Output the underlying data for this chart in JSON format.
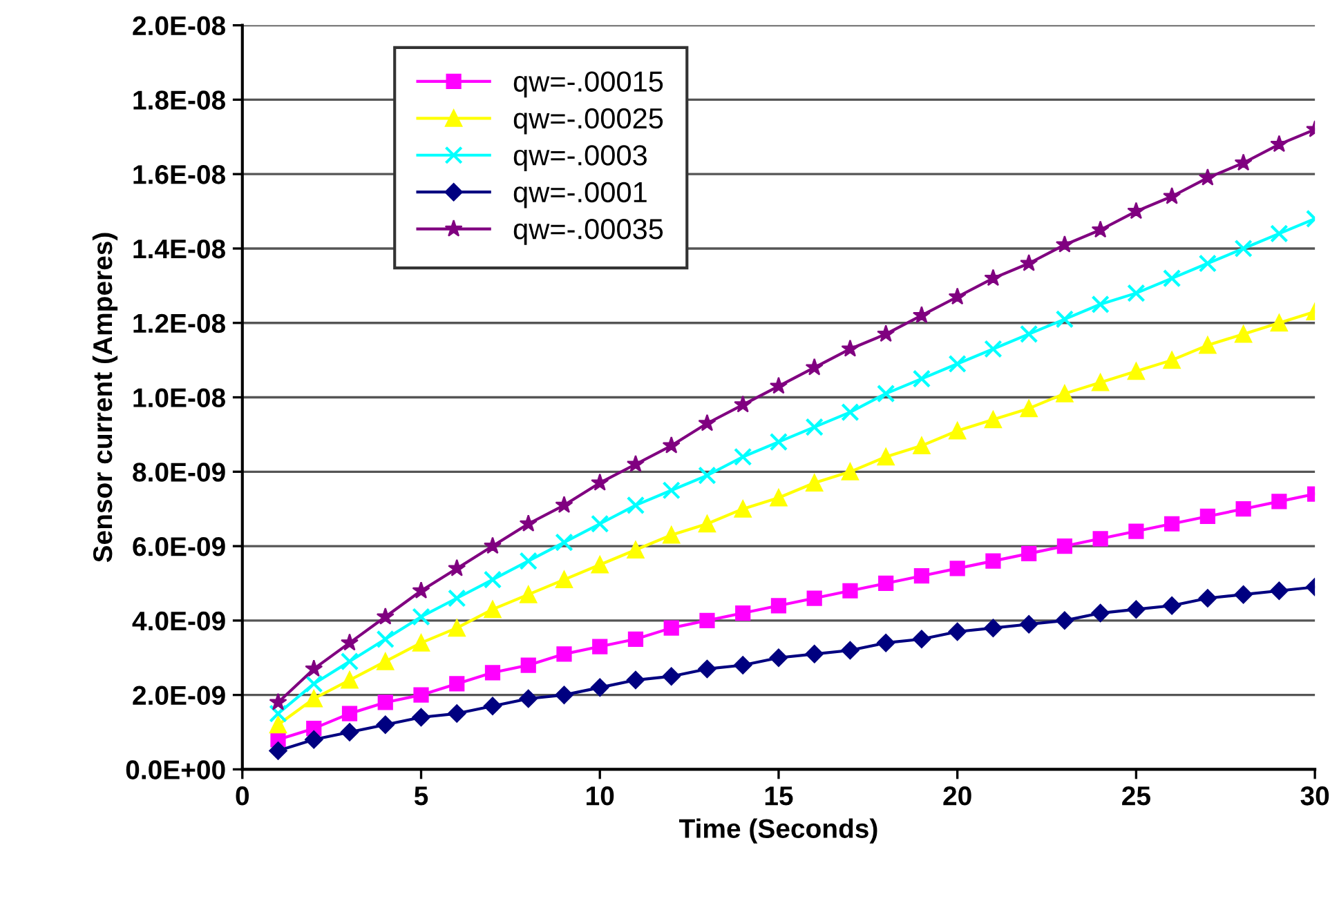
{
  "chart_data": {
    "type": "line",
    "xlabel": "Time (Seconds)",
    "ylabel": "Sensor current (Amperes)",
    "x": [
      1,
      2,
      3,
      4,
      5,
      6,
      7,
      8,
      9,
      10,
      11,
      12,
      13,
      14,
      15,
      16,
      17,
      18,
      19,
      20,
      21,
      22,
      23,
      24,
      25,
      26,
      27,
      28,
      29,
      30
    ],
    "xlim": [
      0,
      30
    ],
    "xticks": [
      0,
      5,
      10,
      15,
      20,
      25,
      30
    ],
    "ylim": [
      0,
      2e-08
    ],
    "yticks": [
      {
        "value": 0,
        "label": "0.0E+00"
      },
      {
        "value": 2e-09,
        "label": "2.0E-09"
      },
      {
        "value": 4e-09,
        "label": "4.0E-09"
      },
      {
        "value": 6e-09,
        "label": "6.0E-09"
      },
      {
        "value": 8e-09,
        "label": "8.0E-09"
      },
      {
        "value": 1e-08,
        "label": "1.0E-08"
      },
      {
        "value": 1.2e-08,
        "label": "1.2E-08"
      },
      {
        "value": 1.4e-08,
        "label": "1.4E-08"
      },
      {
        "value": 1.6e-08,
        "label": "1.6E-08"
      },
      {
        "value": 1.8e-08,
        "label": "1.8E-08"
      },
      {
        "value": 2e-08,
        "label": "2.0E-08"
      }
    ],
    "grid": "y",
    "legend": "top left",
    "series": [
      {
        "name": "qw=-.00015",
        "color": "#ff00ff",
        "marker": "square",
        "values": [
          8e-10,
          1.1e-09,
          1.5e-09,
          1.8e-09,
          2e-09,
          2.3e-09,
          2.6e-09,
          2.8e-09,
          3.1e-09,
          3.3e-09,
          3.5e-09,
          3.8e-09,
          4e-09,
          4.2e-09,
          4.4e-09,
          4.6e-09,
          4.8e-09,
          5e-09,
          5.2e-09,
          5.4e-09,
          5.6e-09,
          5.8e-09,
          6e-09,
          6.2e-09,
          6.4e-09,
          6.6e-09,
          6.8e-09,
          7e-09,
          7.2e-09,
          7.4e-09
        ]
      },
      {
        "name": "qw=-.00025",
        "color": "#ffff00",
        "marker": "triangle",
        "values": [
          1.2e-09,
          1.9e-09,
          2.4e-09,
          2.9e-09,
          3.4e-09,
          3.8e-09,
          4.3e-09,
          4.7e-09,
          5.1e-09,
          5.5e-09,
          5.9e-09,
          6.3e-09,
          6.6e-09,
          7e-09,
          7.3e-09,
          7.7e-09,
          8e-09,
          8.4e-09,
          8.7e-09,
          9.1e-09,
          9.4e-09,
          9.7e-09,
          1.01e-08,
          1.04e-08,
          1.07e-08,
          1.1e-08,
          1.14e-08,
          1.17e-08,
          1.2e-08,
          1.23e-08
        ]
      },
      {
        "name": "qw=-.0003",
        "color": "#00ffff",
        "marker": "cross",
        "values": [
          1.5e-09,
          2.3e-09,
          2.9e-09,
          3.5e-09,
          4.1e-09,
          4.6e-09,
          5.1e-09,
          5.6e-09,
          6.1e-09,
          6.6e-09,
          7.1e-09,
          7.5e-09,
          7.9e-09,
          8.4e-09,
          8.8e-09,
          9.2e-09,
          9.6e-09,
          1.01e-08,
          1.05e-08,
          1.09e-08,
          1.13e-08,
          1.17e-08,
          1.21e-08,
          1.25e-08,
          1.28e-08,
          1.32e-08,
          1.36e-08,
          1.4e-08,
          1.44e-08,
          1.48e-08
        ]
      },
      {
        "name": "qw=-.0001",
        "color": "#000080",
        "marker": "diamond",
        "values": [
          5e-10,
          8e-10,
          1e-09,
          1.2e-09,
          1.4e-09,
          1.5e-09,
          1.7e-09,
          1.9e-09,
          2e-09,
          2.2e-09,
          2.4e-09,
          2.5e-09,
          2.7e-09,
          2.8e-09,
          3e-09,
          3.1e-09,
          3.2e-09,
          3.4e-09,
          3.5e-09,
          3.7e-09,
          3.8e-09,
          3.9e-09,
          4e-09,
          4.2e-09,
          4.3e-09,
          4.4e-09,
          4.6e-09,
          4.7e-09,
          4.8e-09,
          4.9e-09
        ]
      },
      {
        "name": "qw=-.00035",
        "color": "#800080",
        "marker": "star",
        "values": [
          1.8e-09,
          2.7e-09,
          3.4e-09,
          4.1e-09,
          4.8e-09,
          5.4e-09,
          6e-09,
          6.6e-09,
          7.1e-09,
          7.7e-09,
          8.2e-09,
          8.7e-09,
          9.3e-09,
          9.8e-09,
          1.03e-08,
          1.08e-08,
          1.13e-08,
          1.17e-08,
          1.22e-08,
          1.27e-08,
          1.32e-08,
          1.36e-08,
          1.41e-08,
          1.45e-08,
          1.5e-08,
          1.54e-08,
          1.59e-08,
          1.63e-08,
          1.68e-08,
          1.72e-08
        ]
      }
    ]
  }
}
